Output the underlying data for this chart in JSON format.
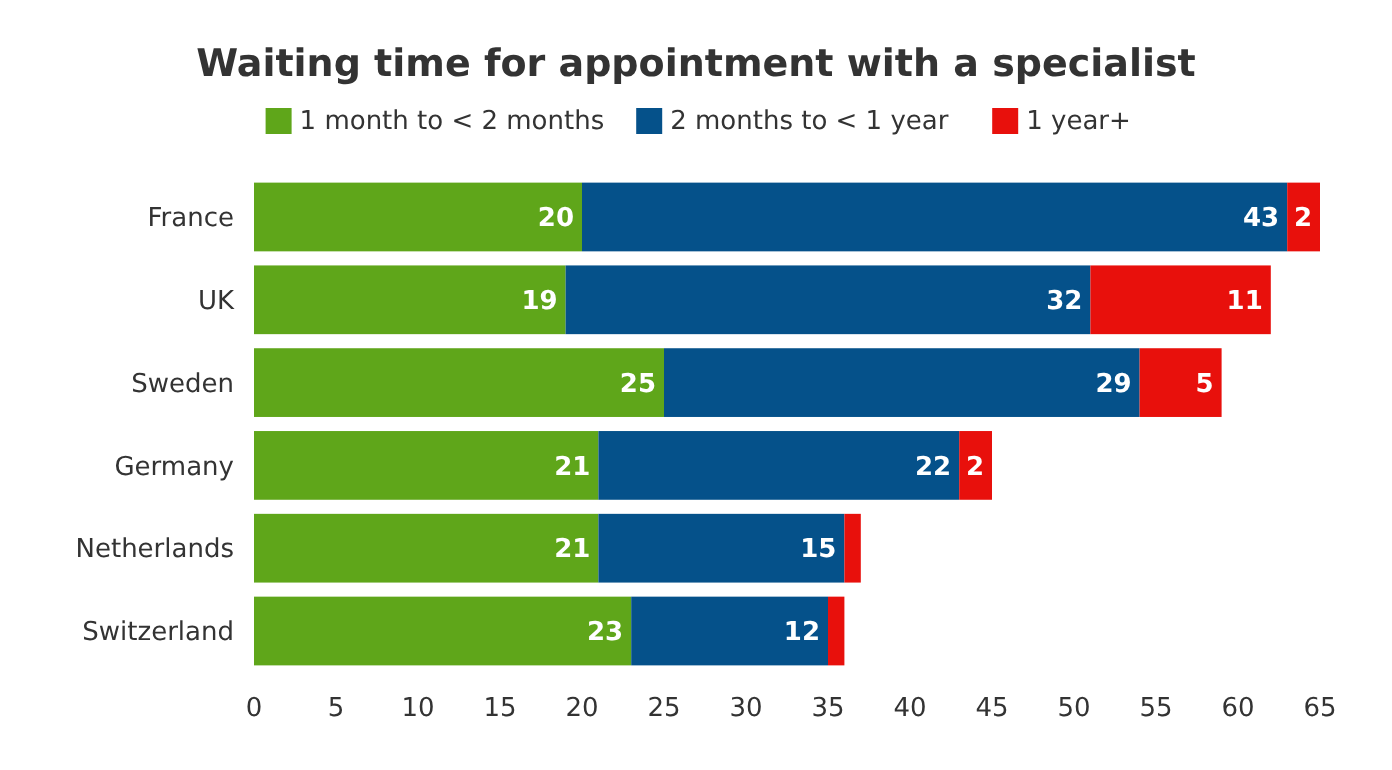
{
  "chart_data": {
    "type": "bar",
    "orientation": "horizontal",
    "stacked": true,
    "title": "Waiting time for appointment with a specialist",
    "categories": [
      "France",
      "UK",
      "Sweden",
      "Germany",
      "Netherlands",
      "Switzerland"
    ],
    "series": [
      {
        "name": "1 month to < 2 months",
        "color": "#5fa61a",
        "values": [
          20,
          19,
          25,
          21,
          21,
          23
        ],
        "value_labels": [
          "20",
          "19",
          "25",
          "21",
          "21",
          "23"
        ]
      },
      {
        "name": "2 months to < 1 year",
        "color": "#05518a",
        "values": [
          43,
          32,
          29,
          22,
          15,
          12
        ],
        "value_labels": [
          "43",
          "32",
          "29",
          "22",
          "15",
          "12"
        ]
      },
      {
        "name": "1 year+",
        "color": "#e8100c",
        "values": [
          2,
          11,
          5,
          2,
          1,
          1
        ],
        "value_labels": [
          "2",
          "11",
          "5",
          "2",
          null,
          null
        ]
      }
    ],
    "xlim": [
      0,
      65
    ],
    "xticks": [
      0,
      5,
      10,
      15,
      20,
      25,
      30,
      35,
      40,
      45,
      50,
      55,
      60,
      65
    ],
    "legend": "top"
  }
}
